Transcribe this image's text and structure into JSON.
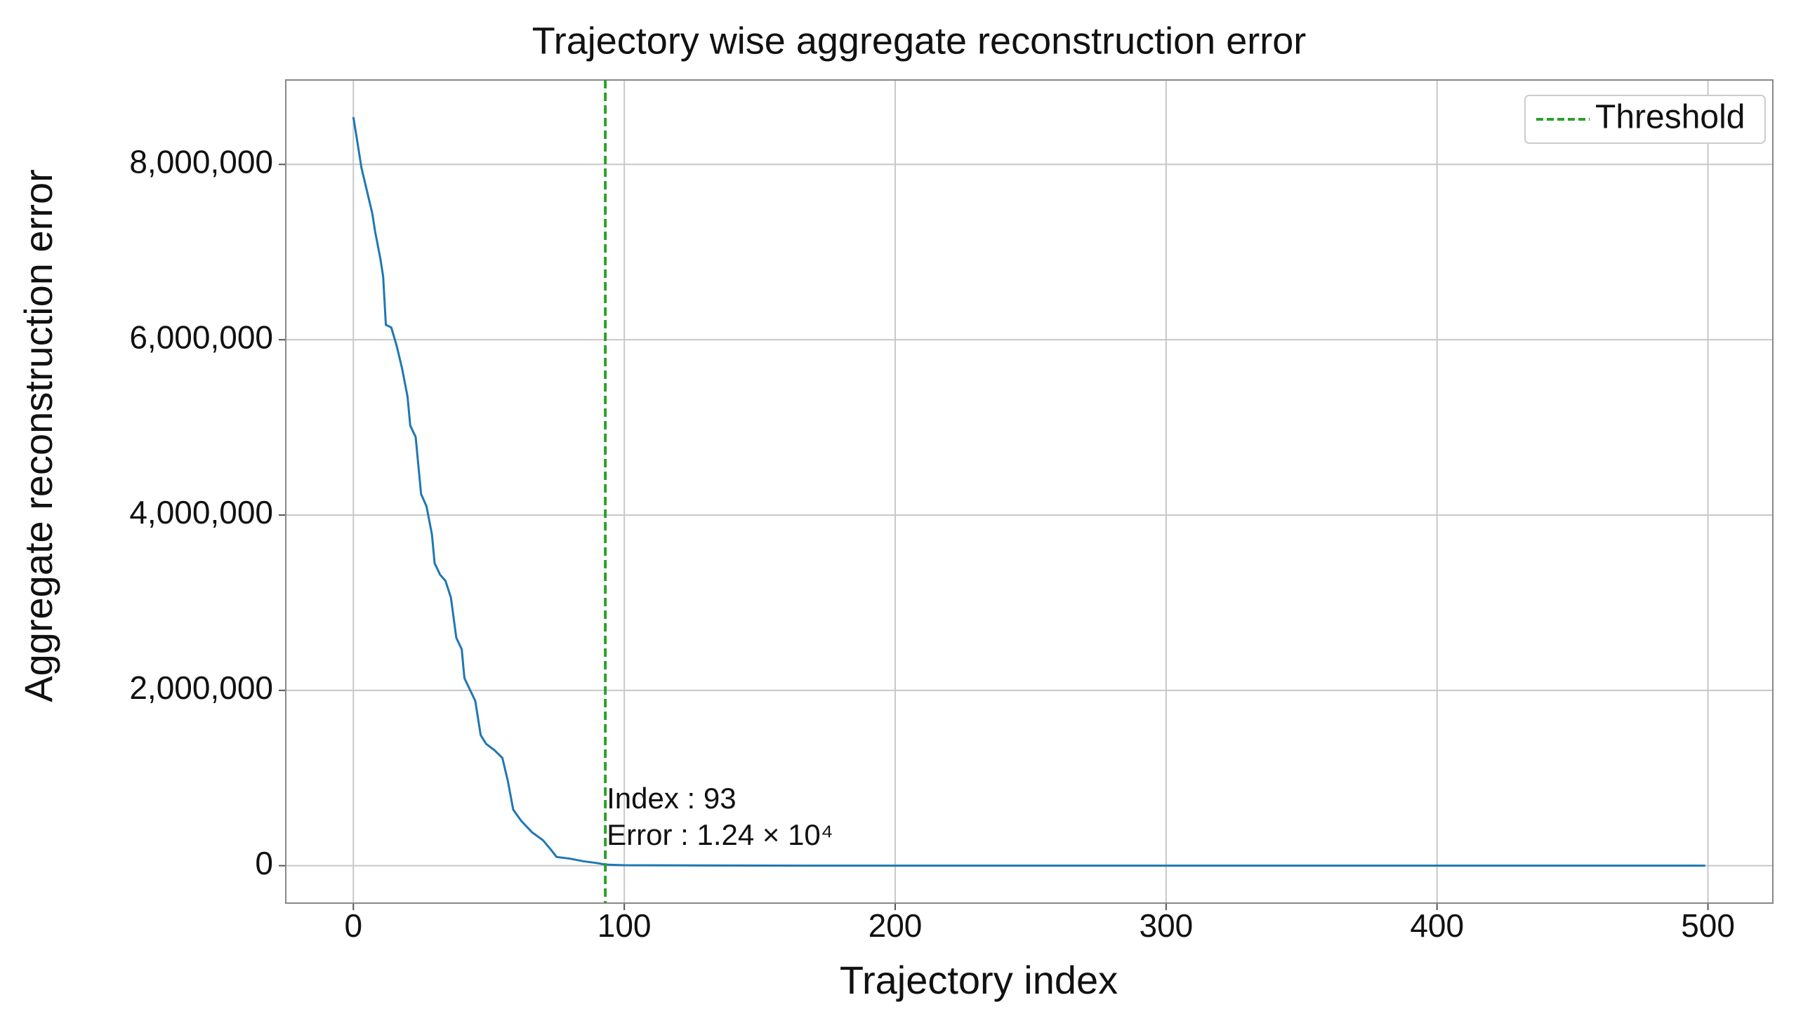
{
  "chart_data": {
    "type": "line",
    "title": "Trajectory wise aggregate reconstruction error",
    "x_label": "Trajectory index",
    "y_label": "Aggregate reconstruction error",
    "series": [
      {
        "color": "#1f77b4",
        "x": [
          0,
          1,
          3,
          5,
          7,
          8,
          10,
          11,
          12,
          14,
          16,
          18,
          20,
          21,
          23,
          25,
          27,
          29,
          30,
          32,
          34,
          36,
          38,
          40,
          41,
          43,
          45,
          47,
          49,
          52,
          55,
          57,
          59,
          62,
          66,
          70,
          73,
          75,
          80,
          85,
          90,
          93,
          100,
          150,
          200,
          300,
          400,
          499
        ],
        "values": [
          8540000,
          8350000,
          7960000,
          7700000,
          7440000,
          7240000,
          6920000,
          6720000,
          6170000,
          6140000,
          5930000,
          5670000,
          5350000,
          5020000,
          4890000,
          4240000,
          4100000,
          3780000,
          3450000,
          3320000,
          3250000,
          3060000,
          2600000,
          2470000,
          2140000,
          2010000,
          1880000,
          1490000,
          1390000,
          1320000,
          1230000,
          970000,
          640000,
          510000,
          380000,
          290000,
          180000,
          100000,
          80000,
          50000,
          30000,
          12400,
          5000,
          1000,
          500,
          100,
          20,
          0
        ]
      }
    ],
    "threshold": {
      "x": 93,
      "label": "Threshold",
      "color": "#2ca02c"
    },
    "annotation": [
      "Index : 93",
      "Error : 1.24 × 10⁴"
    ],
    "xlim": [
      -24.95,
      523.95
    ],
    "ylim": [
      -426800,
      8963000
    ],
    "xticks": [
      0,
      100,
      200,
      300,
      400,
      500
    ],
    "yticks": [
      0,
      {
        "value": 2000000,
        "label": "2,000,000"
      },
      {
        "value": 4000000,
        "label": "4,000,000"
      },
      {
        "value": 6000000,
        "label": "6,000,000"
      },
      {
        "value": 8000000,
        "label": "8,000,000"
      }
    ],
    "grid": true,
    "legend": "upper right"
  }
}
